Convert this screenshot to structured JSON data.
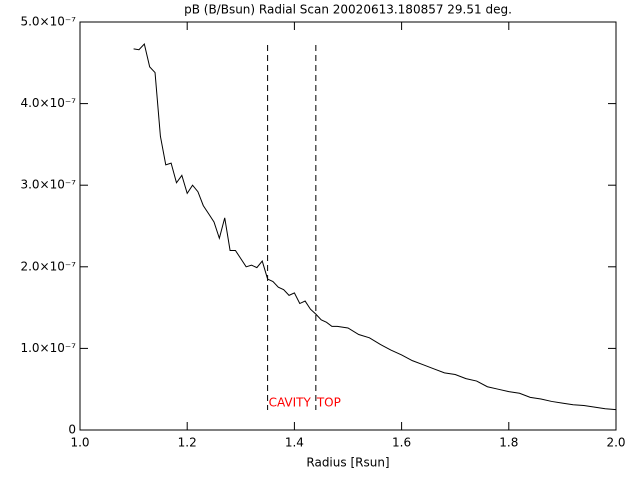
{
  "chart_data": {
    "type": "line",
    "title": "pB (B/Bsun) Radial Scan 20020613.180857 29.51 deg.",
    "x_label": "Radius [Rsun]",
    "x": [
      1.1,
      1.11,
      1.12,
      1.13,
      1.14,
      1.15,
      1.16,
      1.17,
      1.18,
      1.19,
      1.2,
      1.21,
      1.22,
      1.23,
      1.24,
      1.25,
      1.26,
      1.27,
      1.28,
      1.29,
      1.3,
      1.31,
      1.32,
      1.33,
      1.34,
      1.35,
      1.36,
      1.37,
      1.38,
      1.39,
      1.4,
      1.41,
      1.42,
      1.43,
      1.44,
      1.45,
      1.46,
      1.47,
      1.48,
      1.5,
      1.52,
      1.54,
      1.56,
      1.58,
      1.6,
      1.62,
      1.64,
      1.66,
      1.68,
      1.7,
      1.72,
      1.74,
      1.76,
      1.78,
      1.8,
      1.82,
      1.84,
      1.86,
      1.88,
      1.9,
      1.92,
      1.94,
      1.96,
      1.98,
      2.0
    ],
    "series": [
      {
        "color": "#000000",
        "values": [
          4.67e-07,
          4.66e-07,
          4.73e-07,
          4.45e-07,
          4.38e-07,
          3.6e-07,
          3.25e-07,
          3.27e-07,
          3.03e-07,
          3.12e-07,
          2.9e-07,
          3e-07,
          2.92e-07,
          2.75e-07,
          2.65e-07,
          2.55e-07,
          2.35e-07,
          2.6e-07,
          2.2e-07,
          2.2e-07,
          2.1e-07,
          2e-07,
          2.02e-07,
          1.99e-07,
          2.07e-07,
          1.85e-07,
          1.82e-07,
          1.75e-07,
          1.72e-07,
          1.65e-07,
          1.68e-07,
          1.55e-07,
          1.58e-07,
          1.48e-07,
          1.42e-07,
          1.35e-07,
          1.32e-07,
          1.27e-07,
          1.27e-07,
          1.25e-07,
          1.17e-07,
          1.13e-07,
          1.05e-07,
          9.8e-08,
          9.2e-08,
          8.5e-08,
          8e-08,
          7.5e-08,
          7e-08,
          6.8e-08,
          6.3e-08,
          6e-08,
          5.3e-08,
          5e-08,
          4.7e-08,
          4.5e-08,
          4e-08,
          3.8e-08,
          3.5e-08,
          3.3e-08,
          3.1e-08,
          3e-08,
          2.8e-08,
          2.6e-08,
          2.5e-08
        ]
      }
    ],
    "xlim": [
      1.0,
      2.0
    ],
    "xticks": [
      {
        "value": 1.0,
        "label": "1.0"
      },
      1.2,
      1.4,
      1.6,
      1.8,
      {
        "value": 2.0,
        "label": "2.0"
      }
    ],
    "ylim": [
      0,
      5e-07
    ],
    "yticks": [
      0,
      {
        "value": 1e-07,
        "label": "1.0×10⁻⁷"
      },
      {
        "value": 2e-07,
        "label": "2.0×10⁻⁷"
      },
      {
        "value": 3e-07,
        "label": "3.0×10⁻⁷"
      },
      {
        "value": 4e-07,
        "label": "4.0×10⁻⁷"
      },
      {
        "value": 5e-07,
        "label": "5.0×10⁻⁷"
      }
    ],
    "annotations": [
      {
        "x": 1.35,
        "label": "CAVITY",
        "color": "#ff0000"
      },
      {
        "x": 1.44,
        "label": "TOP",
        "color": "#ff0000"
      }
    ]
  }
}
